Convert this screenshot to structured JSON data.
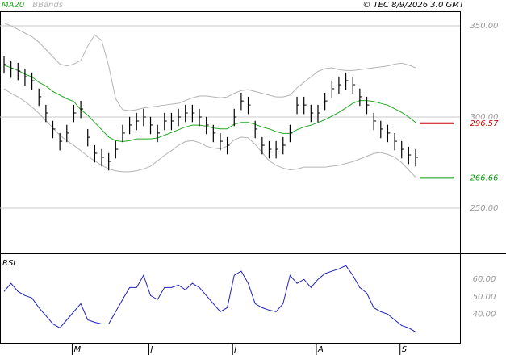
{
  "header": {
    "copyright": "© TEC 8/9/2026 3:0 GMT"
  },
  "chart_data": [
    {
      "type": "ohlc",
      "ylim": [
        225.7,
        357.5
      ],
      "yticks": [
        {
          "value": 250,
          "label": "250.00"
        },
        {
          "value": 300,
          "label": "300.00"
        },
        {
          "value": 350,
          "label": "350.00"
        }
      ],
      "grid": true,
      "color": "#000000",
      "high": [
        333.3,
        331,
        329.7,
        326.6,
        324.4,
        315.6,
        306.7,
        297.9,
        291.2,
        295.7,
        306.7,
        308.9,
        293.4,
        284.6,
        282.4,
        280.2,
        286.8,
        295.7,
        300.1,
        302.3,
        304.5,
        300.1,
        295.7,
        302.3,
        302.3,
        304.5,
        306.7,
        306.7,
        304.5,
        300.1,
        295.7,
        291.2,
        289,
        304.5,
        313.3,
        311.1,
        297.9,
        289,
        286.8,
        286.8,
        289,
        295.7,
        311.1,
        311.1,
        306.7,
        306.7,
        313.3,
        320,
        322.2,
        324.4,
        322.2,
        315.6,
        311.1,
        302.3,
        297.9,
        295.7,
        291.2,
        286.8,
        283.7,
        282.4
      ],
      "low": [
        323.8,
        321.5,
        320.2,
        317.1,
        314.9,
        306.1,
        297.2,
        288.4,
        281.7,
        286.2,
        297.2,
        299.4,
        283.9,
        275.1,
        272.9,
        270.7,
        277.3,
        286.2,
        290.6,
        292.8,
        295,
        290.6,
        286.2,
        292.8,
        292.8,
        295,
        297.2,
        297.2,
        295,
        290.6,
        286.2,
        281.7,
        279.5,
        295,
        303.8,
        301.6,
        288.4,
        279.5,
        277.3,
        277.3,
        279.5,
        286.2,
        301.6,
        301.6,
        297.2,
        297.2,
        303.8,
        310.5,
        312.7,
        314.9,
        312.7,
        306.1,
        301.6,
        292.8,
        288.4,
        286.2,
        281.7,
        277.3,
        274.2,
        272.9
      ],
      "close": [
        328.8,
        326.5,
        325.2,
        322.1,
        319.9,
        311.1,
        302.2,
        293.4,
        286.7,
        291.2,
        302.2,
        304.4,
        288.9,
        280.1,
        277.9,
        275.7,
        282.3,
        291.2,
        295.6,
        297.8,
        300,
        295.6,
        291.2,
        297.8,
        297.8,
        300,
        302.2,
        302.2,
        300,
        295.6,
        291.2,
        286.7,
        284.5,
        300,
        308.8,
        306.6,
        293.4,
        284.5,
        282.3,
        282.3,
        284.5,
        291.2,
        306.6,
        306.6,
        302.2,
        302.2,
        308.8,
        315.5,
        317.7,
        319.9,
        317.7,
        311.1,
        306.6,
        297.8,
        293.4,
        291.2,
        286.7,
        282.3,
        279.2,
        277.9
      ],
      "series": [
        {
          "name": "MA20",
          "color": "#22aa22",
          "values": [
            328.5,
            327,
            325.5,
            323.5,
            322,
            319,
            317,
            314,
            312,
            310,
            308.5,
            304,
            301,
            297,
            293,
            289,
            287,
            286.5,
            287,
            288,
            288,
            288,
            288.5,
            290,
            291.5,
            293,
            294.5,
            295.5,
            295.5,
            295,
            294,
            293.5,
            293.5,
            296,
            297,
            297,
            296,
            294.5,
            293.5,
            292,
            291,
            291,
            293,
            294.5,
            295.5,
            297,
            298.5,
            300.5,
            302.5,
            305,
            307.5,
            309,
            309,
            308.5,
            307.5,
            306.5,
            304.5,
            302.5,
            300,
            297
          ]
        },
        {
          "name": "BBands",
          "color": "#b4b4b4",
          "upper": [
            351.5,
            350,
            348,
            346,
            344,
            341,
            337,
            333,
            329,
            328,
            329,
            331,
            339,
            345,
            342,
            328,
            310,
            304,
            303.5,
            304,
            305,
            305.5,
            306,
            306.5,
            307,
            307.5,
            309,
            310.5,
            311.5,
            311.5,
            311,
            310.5,
            311,
            313,
            314.5,
            315,
            314,
            313,
            312,
            311,
            311,
            312,
            316,
            319,
            322,
            325,
            326.5,
            327,
            326,
            325.5,
            325.5,
            326,
            326.5,
            327,
            327.5,
            328,
            329,
            329.5,
            328.5,
            327
          ],
          "lower": [
            315.5,
            313,
            311,
            308.5,
            305.5,
            302,
            298,
            294,
            290,
            287,
            284.5,
            281.5,
            278.5,
            276,
            273.5,
            271.5,
            270.5,
            270,
            270,
            270.5,
            271.5,
            273,
            276,
            279,
            281.5,
            284.5,
            286.5,
            287,
            286,
            284,
            283,
            282.5,
            284,
            287.5,
            289,
            288.5,
            285,
            280.5,
            276,
            273.5,
            272,
            271,
            271.5,
            272.5,
            272.5,
            272.5,
            272.5,
            273,
            273.5,
            274.5,
            275.5,
            277,
            278.5,
            280,
            280.5,
            279.5,
            278,
            275,
            271,
            267
          ]
        }
      ],
      "levels": [
        {
          "value": 296.57,
          "color": "#cc0000"
        },
        {
          "value": 266.66,
          "color": "#009900"
        }
      ]
    },
    {
      "type": "line",
      "title": "RSI",
      "categories": [
        null,
        null,
        null,
        null,
        null,
        null,
        null,
        null,
        null,
        null,
        "M",
        null,
        null,
        null,
        null,
        null,
        null,
        null,
        null,
        null,
        null,
        "J",
        null,
        null,
        null,
        null,
        null,
        null,
        null,
        null,
        null,
        null,
        null,
        "J",
        null,
        null,
        null,
        null,
        null,
        null,
        null,
        null,
        null,
        null,
        null,
        "A",
        null,
        null,
        null,
        null,
        null,
        null,
        null,
        null,
        null,
        null,
        null,
        "S",
        null,
        null
      ],
      "ylim": [
        23.5,
        74
      ],
      "yticks": [
        {
          "value": 40,
          "label": "40.00"
        },
        {
          "value": 50,
          "label": "50.00"
        },
        {
          "value": 60,
          "label": "60.00"
        }
      ],
      "series": [
        {
          "name": "RSI",
          "color": "#2020c0",
          "values": [
            53,
            57.7,
            53,
            50.7,
            49.3,
            43.7,
            39.1,
            34.4,
            32.1,
            36.7,
            41.4,
            46,
            36.7,
            35.3,
            34.4,
            34.4,
            41.4,
            48.4,
            55.3,
            55.3,
            62.3,
            50.7,
            48.4,
            55.3,
            55.3,
            56.7,
            54,
            57.7,
            55.3,
            50.7,
            46,
            41.4,
            43.7,
            62.3,
            64.7,
            57.7,
            46,
            43.7,
            42.3,
            41.4,
            46,
            62.3,
            57.7,
            60,
            55.3,
            60,
            63.3,
            64.7,
            66,
            67.9,
            62.3,
            55.3,
            52.1,
            43.7,
            41.4,
            40,
            36.7,
            33.5,
            32.1,
            29.8
          ]
        }
      ]
    }
  ]
}
